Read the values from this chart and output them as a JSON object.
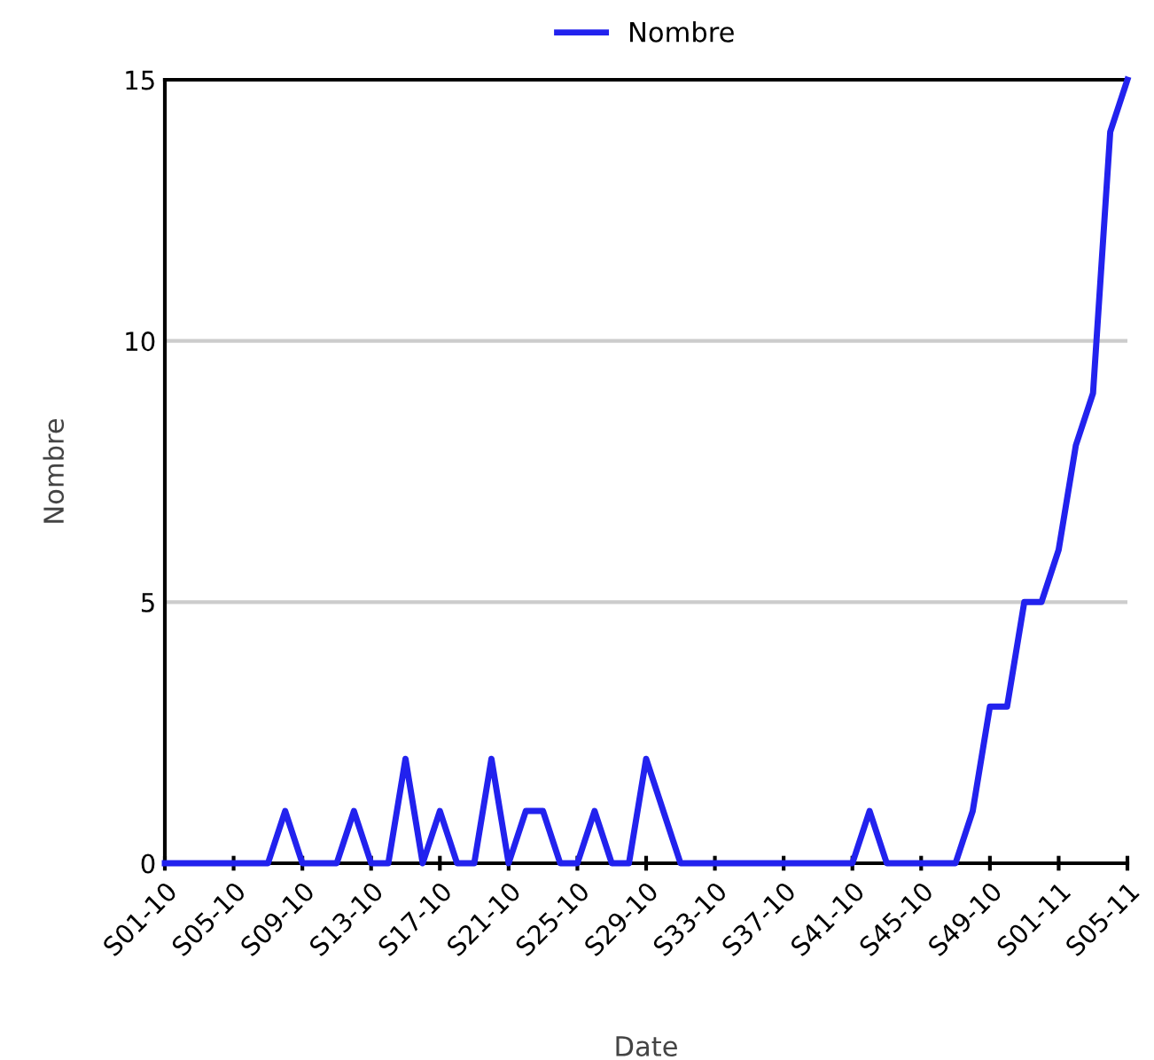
{
  "chart_data": {
    "type": "line",
    "xlabel": "Date",
    "ylabel": "Nombre",
    "categories": [
      "S01-10",
      null,
      null,
      null,
      "S05-10",
      null,
      null,
      null,
      "S09-10",
      null,
      null,
      null,
      "S13-10",
      null,
      null,
      null,
      "S17-10",
      null,
      null,
      null,
      "S21-10",
      null,
      null,
      null,
      "S25-10",
      null,
      null,
      null,
      "S29-10",
      null,
      null,
      null,
      "S33-10",
      null,
      null,
      null,
      "S37-10",
      null,
      null,
      null,
      "S41-10",
      null,
      null,
      null,
      "S45-10",
      null,
      null,
      null,
      "S49-10",
      null,
      null,
      null,
      "S01-11",
      null,
      null,
      null,
      "S05-11"
    ],
    "series": [
      {
        "name": "Nombre",
        "color": "#2222ee",
        "values": [
          0,
          0,
          0,
          0,
          0,
          0,
          0,
          1,
          0,
          0,
          0,
          1,
          0,
          0,
          2,
          0,
          1,
          0,
          0,
          2,
          0,
          1,
          1,
          0,
          0,
          1,
          0,
          0,
          2,
          1,
          0,
          0,
          0,
          0,
          0,
          0,
          0,
          0,
          0,
          0,
          0,
          1,
          0,
          0,
          0,
          0,
          0,
          1,
          3,
          3,
          5,
          5,
          6,
          8,
          9,
          14,
          15
        ]
      }
    ],
    "ylim": [
      0,
      15
    ],
    "yticks": [
      0,
      5,
      10,
      15
    ],
    "grid": "y",
    "legend": "top",
    "marker": "none",
    "line_style": "solid"
  }
}
